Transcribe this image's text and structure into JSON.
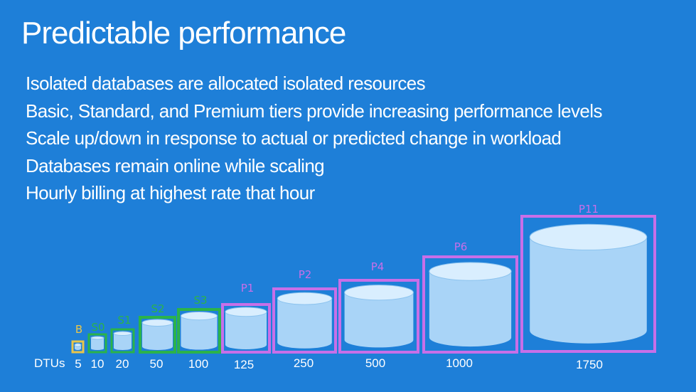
{
  "title": "Predictable performance",
  "bullets": [
    "Isolated databases are allocated isolated resources",
    "Basic, Standard, and Premium tiers provide increasing performance levels",
    "Scale up/down in response to actual or predicted change in workload",
    "Databases remain online while scaling",
    "Hourly billing at highest rate that hour"
  ],
  "dtu_axis_label": "DTUs",
  "colors": {
    "background": "#1e7fd8",
    "basic": "#e9c64a",
    "standard": "#2bb34a",
    "premium": "#c86fe8",
    "cylinder_body": "#a9d4f7",
    "cylinder_top": "#d9eefe"
  },
  "tiers": [
    {
      "label": "B",
      "dtu": "5",
      "tier": "basic"
    },
    {
      "label": "S0",
      "dtu": "10",
      "tier": "standard"
    },
    {
      "label": "S1",
      "dtu": "20",
      "tier": "standard"
    },
    {
      "label": "S2",
      "dtu": "50",
      "tier": "standard"
    },
    {
      "label": "S3",
      "dtu": "100",
      "tier": "standard"
    },
    {
      "label": "P1",
      "dtu": "125",
      "tier": "premium"
    },
    {
      "label": "P2",
      "dtu": "250",
      "tier": "premium"
    },
    {
      "label": "P4",
      "dtu": "500",
      "tier": "premium"
    },
    {
      "label": "P6",
      "dtu": "1000",
      "tier": "premium"
    },
    {
      "label": "P11",
      "dtu": "1750",
      "tier": "premium"
    }
  ]
}
